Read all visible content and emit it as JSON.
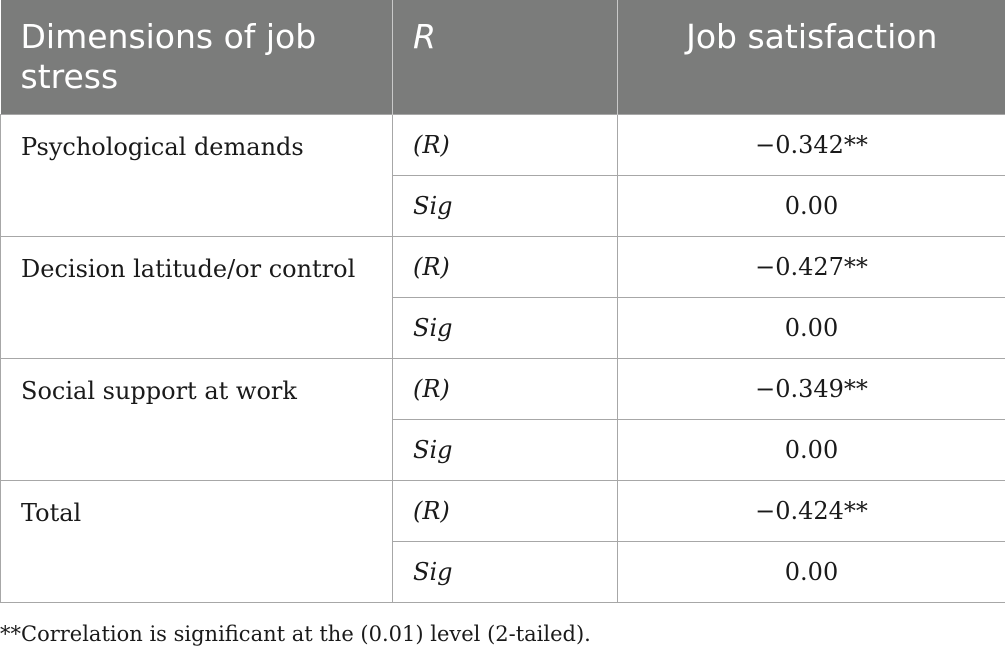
{
  "table": {
    "headers": [
      "Dimensions of job stress",
      "R",
      "Job satisfaction"
    ],
    "rows": [
      {
        "dimension": "Psychological demands",
        "stats": [
          {
            "label": "(R)",
            "value": "−0.342**"
          },
          {
            "label": "Sig",
            "value": "0.00"
          }
        ]
      },
      {
        "dimension": "Decision latitude/or control",
        "stats": [
          {
            "label": "(R)",
            "value": "−0.427**"
          },
          {
            "label": "Sig",
            "value": "0.00"
          }
        ]
      },
      {
        "dimension": "Social support at work",
        "stats": [
          {
            "label": "(R)",
            "value": "−0.349**"
          },
          {
            "label": "Sig",
            "value": "0.00"
          }
        ]
      },
      {
        "dimension": "Total",
        "stats": [
          {
            "label": "(R)",
            "value": "−0.424**"
          },
          {
            "label": "Sig",
            "value": "0.00"
          }
        ]
      }
    ]
  },
  "footnote": "**Correlation is significant at the (0.01) level (2-tailed).",
  "colors": {
    "header_bg": "#7b7c7b",
    "header_text": "#ffffff",
    "border": "#a7a7a7"
  }
}
